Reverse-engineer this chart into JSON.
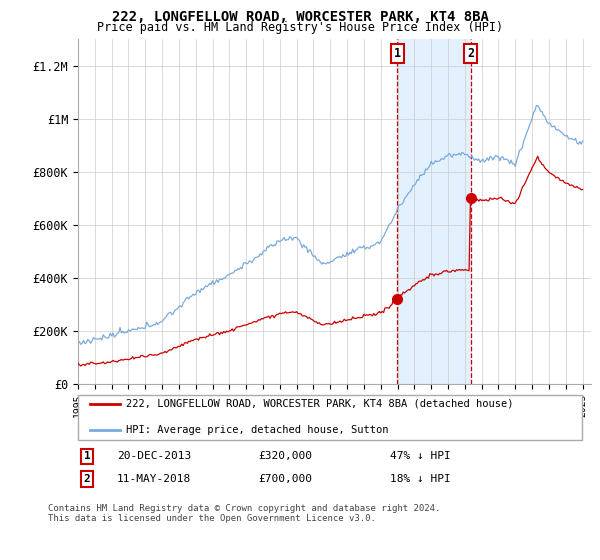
{
  "title1": "222, LONGFELLOW ROAD, WORCESTER PARK, KT4 8BA",
  "title2": "Price paid vs. HM Land Registry's House Price Index (HPI)",
  "legend_line1": "222, LONGFELLOW ROAD, WORCESTER PARK, KT4 8BA (detached house)",
  "legend_line2": "HPI: Average price, detached house, Sutton",
  "transaction1_date": "20-DEC-2013",
  "transaction1_price": "£320,000",
  "transaction1_pct": "47% ↓ HPI",
  "transaction1_year": 2013.97,
  "transaction1_value": 320000,
  "transaction2_date": "11-MAY-2018",
  "transaction2_price": "£700,000",
  "transaction2_pct": "18% ↓ HPI",
  "transaction2_year": 2018.36,
  "transaction2_value": 700000,
  "footnote": "Contains HM Land Registry data © Crown copyright and database right 2024.\nThis data is licensed under the Open Government Licence v3.0.",
  "ylim": [
    0,
    1300000
  ],
  "xlim_start": 1995,
  "xlim_end": 2025.5,
  "hpi_color": "#7aaadd",
  "price_color": "#cc0000",
  "background_color": "#ffffff",
  "shade_color": "#ddeeff"
}
